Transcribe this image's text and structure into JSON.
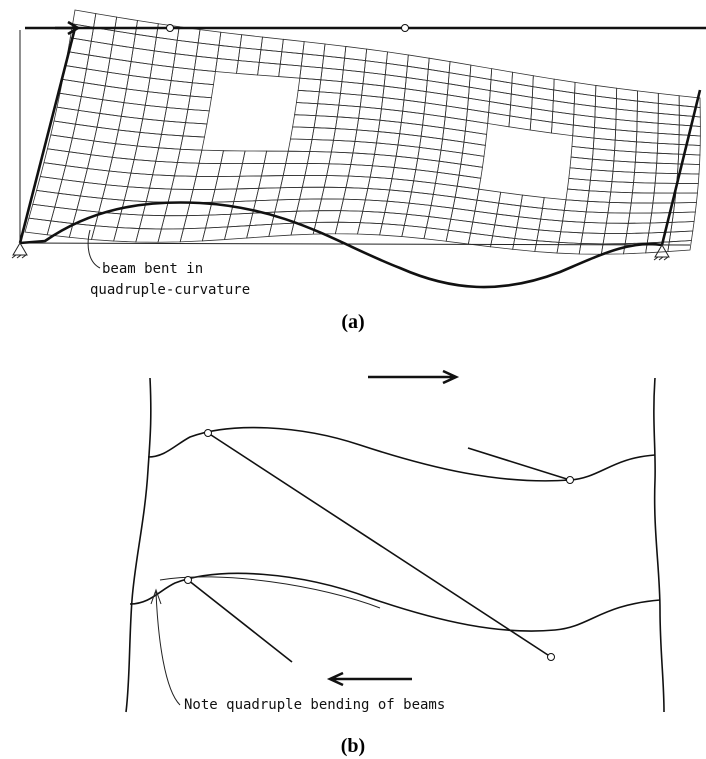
{
  "figure_a": {
    "annotation": [
      "beam bent in",
      "quadruple-curvature"
    ],
    "label": "(a)"
  },
  "figure_b": {
    "annotation": "Note quadruple bending of beams",
    "label": "(b)"
  }
}
